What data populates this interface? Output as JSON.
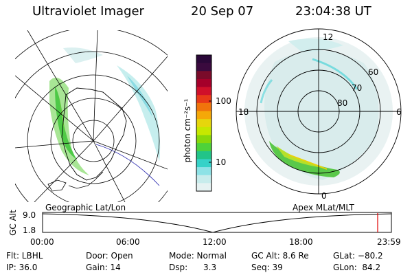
{
  "header": {
    "title": "Ultraviolet Imager",
    "date": "20 Sep 07",
    "time": "23:04:38 UT"
  },
  "left_panel": {
    "caption": "Geographic Lat/Lon"
  },
  "right_panel": {
    "caption": "Apex MLat/MLT",
    "mlt_labels": {
      "top": "12",
      "left": "18",
      "right": "6",
      "bottom": "0"
    },
    "lat_labels": [
      "60",
      "70",
      "80"
    ]
  },
  "colorbar": {
    "unit": "photon cm⁻²s⁻¹",
    "ticks": [
      "100",
      "10"
    ],
    "colors": [
      "#2a0838",
      "#3a0a3e",
      "#7a0b2a",
      "#a5002a",
      "#d0102a",
      "#e83a18",
      "#f0740c",
      "#f5a808",
      "#e6d60c",
      "#c6e800",
      "#88d80a",
      "#4ed23a",
      "#22c488",
      "#36d2c8",
      "#8ee2e6",
      "#c8ecec",
      "#e6f2f2"
    ]
  },
  "altitude_strip": {
    "ylabel": "GC Alt",
    "yticks": [
      "9.0",
      "1.8"
    ],
    "xticks": [
      "00:00",
      "06:00",
      "12:00",
      "18:00",
      "23:59"
    ],
    "marker_color": "#e00000"
  },
  "info": {
    "flt": "Flt: LBHL",
    "ip": "IP: 36.0",
    "door": "Door: Open",
    "gain": "Gain: 14",
    "mode": "Mode: Normal",
    "dsp": "Dsp:      3.3",
    "gcalt": "GC Alt: 8.6 Re",
    "seq": "Seq: 39",
    "glat": "GLat: −80.2",
    "glon": "GLon:  84.2"
  }
}
